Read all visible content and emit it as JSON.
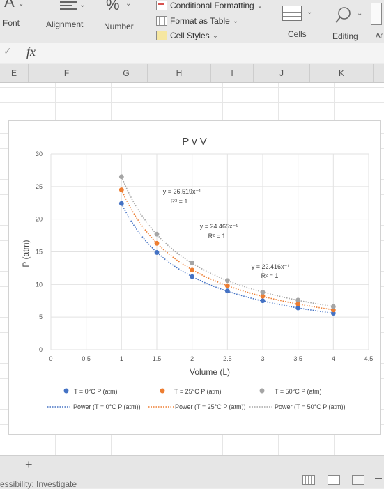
{
  "ribbon": {
    "font_label": "Font",
    "alignment_label": "Alignment",
    "number_label": "Number",
    "number_symbol": "%",
    "conditional_formatting": "Conditional Formatting",
    "format_as_table": "Format as Table",
    "cell_styles": "Cell Styles",
    "cells_label": "Cells",
    "editing_label": "Editing",
    "cut_label": "Ar"
  },
  "formula_bar": {
    "fx": "fx"
  },
  "columns": [
    "E",
    "F",
    "G",
    "H",
    "I",
    "J",
    "K"
  ],
  "status": {
    "accessibility": "essibility: Investigate",
    "add_sheet": "+"
  },
  "chart_data": {
    "type": "scatter",
    "title": "P v V",
    "xlabel": "Volume (L)",
    "ylabel": "P (atm)",
    "xlim": [
      0,
      4.5
    ],
    "ylim": [
      0,
      30
    ],
    "x_ticks": [
      "0",
      "0.5",
      "1",
      "1.5",
      "2",
      "2.5",
      "3",
      "3.5",
      "4",
      "4.5"
    ],
    "y_ticks": [
      "0",
      "5",
      "10",
      "15",
      "20",
      "25",
      "30"
    ],
    "grid": true,
    "legend_position": "bottom",
    "series": [
      {
        "name": "T = 0°C P (atm)",
        "color": "#4472c4",
        "x": [
          1,
          1.5,
          2,
          2.5,
          3,
          3.5,
          4
        ],
        "y": [
          22.4,
          14.9,
          11.2,
          9.0,
          7.5,
          6.4,
          5.6
        ],
        "trendline": {
          "name": "Power (T = 0°C P (atm))",
          "equation": "y = 22.416x⁻¹",
          "r2": "R² = 1"
        }
      },
      {
        "name": "T = 25°C P (atm)",
        "color": "#ed7d31",
        "x": [
          1,
          1.5,
          2,
          2.5,
          3,
          3.5,
          4
        ],
        "y": [
          24.5,
          16.3,
          12.2,
          9.8,
          8.2,
          7.0,
          6.1
        ],
        "trendline": {
          "name": "Power (T = 25°C P (atm))",
          "equation": "y = 24.465x⁻¹",
          "r2": "R² = 1"
        }
      },
      {
        "name": "T = 50°C P (atm)",
        "color": "#a5a5a5",
        "x": [
          1,
          1.5,
          2,
          2.5,
          3,
          3.5,
          4
        ],
        "y": [
          26.5,
          17.7,
          13.3,
          10.6,
          8.8,
          7.6,
          6.6
        ],
        "trendline": {
          "name": "Power (T = 50°C P (atm))",
          "equation": "y = 26.519x⁻¹",
          "r2": "R² = 1"
        }
      }
    ]
  }
}
